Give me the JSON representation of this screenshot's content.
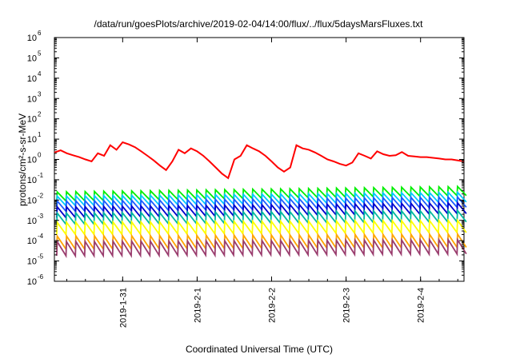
{
  "chart_data": {
    "type": "line",
    "title": "/data/run/goesPlots/archive/2019-02-04/14:00/flux/../flux/5daysMarsFluxes.txt",
    "xlabel": "Coordinated Universal Time (UTC)",
    "ylabel": "protons/cm²-s-sr-MeV",
    "yscale": "log",
    "ylim": [
      1e-06,
      1000000.0
    ],
    "y_ticks": [
      {
        "exp": "-6",
        "value": 1e-06
      },
      {
        "exp": "-5",
        "value": 1e-05
      },
      {
        "exp": "-4",
        "value": 0.0001
      },
      {
        "exp": "-3",
        "value": 0.001
      },
      {
        "exp": "-2",
        "value": 0.01
      },
      {
        "exp": "-1",
        "value": 0.1
      },
      {
        "exp": "0",
        "value": 1
      },
      {
        "exp": "1",
        "value": 10
      },
      {
        "exp": "2",
        "value": 100
      },
      {
        "exp": "3",
        "value": 1000
      },
      {
        "exp": "4",
        "value": 10000
      },
      {
        "exp": "5",
        "value": 100000
      },
      {
        "exp": "6",
        "value": 1000000
      }
    ],
    "xlim": [
      "2019-01-30T02:00",
      "2019-02-04T14:00"
    ],
    "x_ticks": [
      "2019-1-31",
      "2019-2-1",
      "2019-2-2",
      "2019-2-3",
      "2019-2-4"
    ],
    "grid": false,
    "legend": "none",
    "series": [
      {
        "color": "#ff0000",
        "x": [
          "2019-01-30T02:00",
          "2019-01-30T04:00",
          "2019-01-30T06:00",
          "2019-01-30T08:00",
          "2019-01-30T10:00",
          "2019-01-30T12:00",
          "2019-01-30T14:00",
          "2019-01-30T16:00",
          "2019-01-30T18:00",
          "2019-01-30T20:00",
          "2019-01-30T22:00",
          "2019-01-31T00:00",
          "2019-01-31T02:00",
          "2019-01-31T04:00",
          "2019-01-31T06:00",
          "2019-01-31T08:00",
          "2019-01-31T10:00",
          "2019-01-31T12:00",
          "2019-01-31T14:00",
          "2019-01-31T16:00",
          "2019-01-31T18:00",
          "2019-01-31T20:00",
          "2019-01-31T22:00",
          "2019-02-01T00:00",
          "2019-02-01T02:00",
          "2019-02-01T04:00",
          "2019-02-01T06:00",
          "2019-02-01T08:00",
          "2019-02-01T10:00",
          "2019-02-01T12:00",
          "2019-02-01T14:00",
          "2019-02-01T16:00",
          "2019-02-01T18:00",
          "2019-02-01T20:00",
          "2019-02-01T22:00",
          "2019-02-02T00:00",
          "2019-02-02T02:00",
          "2019-02-02T04:00",
          "2019-02-02T06:00",
          "2019-02-02T08:00",
          "2019-02-02T10:00",
          "2019-02-02T12:00",
          "2019-02-02T14:00",
          "2019-02-02T16:00",
          "2019-02-02T18:00",
          "2019-02-02T20:00",
          "2019-02-02T22:00",
          "2019-02-03T00:00",
          "2019-02-03T02:00",
          "2019-02-03T04:00",
          "2019-02-03T06:00",
          "2019-02-03T08:00",
          "2019-02-03T10:00",
          "2019-02-03T12:00",
          "2019-02-03T14:00",
          "2019-02-03T16:00",
          "2019-02-03T18:00",
          "2019-02-03T20:00",
          "2019-02-03T22:00",
          "2019-02-04T00:00",
          "2019-02-04T02:00",
          "2019-02-04T04:00",
          "2019-02-04T06:00",
          "2019-02-04T08:00",
          "2019-02-04T10:00",
          "2019-02-04T12:00",
          "2019-02-04T14:00"
        ],
        "values": [
          2.2,
          2.8,
          2.0,
          1.6,
          1.3,
          1.0,
          0.8,
          2.0,
          1.5,
          5.0,
          3.0,
          7.0,
          5.5,
          4.0,
          2.5,
          1.5,
          0.9,
          0.5,
          0.3,
          0.8,
          3.0,
          2.0,
          3.5,
          2.5,
          1.5,
          0.8,
          0.4,
          0.2,
          0.12,
          1.0,
          1.5,
          5.0,
          3.5,
          2.5,
          1.5,
          0.8,
          0.4,
          0.25,
          0.4,
          5.0,
          3.5,
          3.0,
          2.2,
          1.5,
          1.0,
          0.8,
          0.6,
          0.5,
          0.7,
          2.0,
          1.5,
          1.1,
          2.5,
          1.8,
          1.5,
          1.6,
          2.3,
          1.5,
          1.4,
          1.3,
          1.3,
          1.2,
          1.1,
          1.0,
          1.0,
          0.9,
          0.8
        ]
      },
      {
        "color": "#00ee00",
        "x": [
          "2019-01-30T02:00",
          "2019-02-04T14:00"
        ],
        "values": [
          0.015,
          0.028
        ],
        "pattern": "sawtooth",
        "peak_ratio": 2.8
      },
      {
        "color": "#00c8ff",
        "x": [
          "2019-01-30T02:00",
          "2019-02-04T14:00"
        ],
        "values": [
          0.009,
          0.014
        ],
        "pattern": "sawtooth",
        "peak_ratio": 3.0
      },
      {
        "color": "#1a5cff",
        "x": [
          "2019-01-30T02:00",
          "2019-02-04T14:00"
        ],
        "values": [
          0.005,
          0.008
        ],
        "pattern": "sawtooth",
        "peak_ratio": 3.2
      },
      {
        "color": "#0000cc",
        "x": [
          "2019-01-30T02:00",
          "2019-02-04T14:00"
        ],
        "values": [
          0.0025,
          0.004
        ],
        "pattern": "sawtooth",
        "peak_ratio": 3.4
      },
      {
        "color": "#00b8a0",
        "x": [
          "2019-01-30T02:00",
          "2019-02-04T14:00"
        ],
        "values": [
          0.0012,
          0.0016
        ],
        "pattern": "sawtooth",
        "peak_ratio": 3.6
      },
      {
        "color": "#ffff00",
        "x": [
          "2019-01-30T02:00",
          "2019-02-04T14:00"
        ],
        "values": [
          0.0004,
          0.0005
        ],
        "pattern": "sawtooth",
        "peak_ratio": 4.0
      },
      {
        "color": "#ffa500",
        "x": [
          "2019-01-30T02:00",
          "2019-02-04T14:00"
        ],
        "values": [
          8e-05,
          0.0001
        ],
        "pattern": "sawtooth",
        "peak_ratio": 4.5
      },
      {
        "color": "#9a3d6e",
        "x": [
          "2019-01-30T02:00",
          "2019-02-04T14:00"
        ],
        "values": [
          4e-05,
          5e-05
        ],
        "pattern": "sawtooth",
        "peak_ratio": 5.0
      }
    ]
  }
}
